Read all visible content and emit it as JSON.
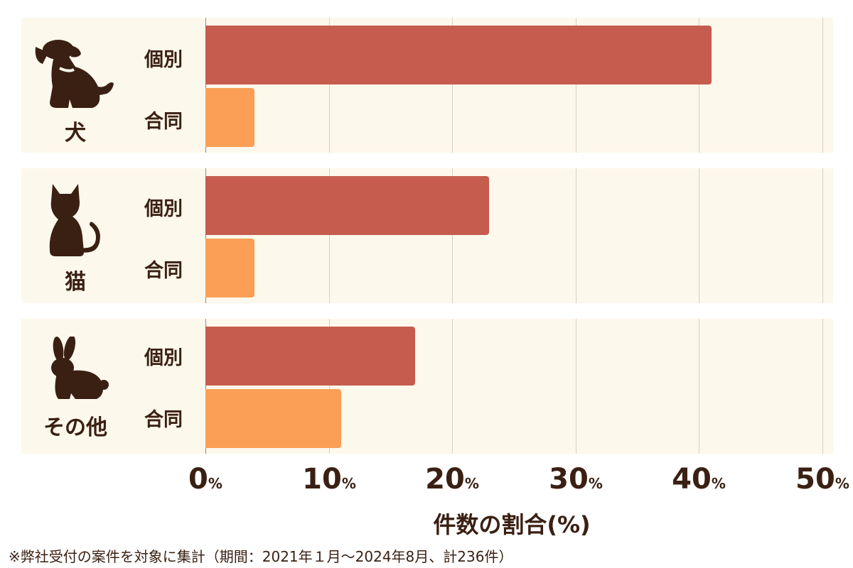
{
  "chart_data": {
    "type": "bar",
    "orientation": "horizontal",
    "groups": [
      {
        "label": "犬",
        "icon": "dog-icon",
        "bars": [
          {
            "label": "個別",
            "value": 41
          },
          {
            "label": "合同",
            "value": 4
          }
        ]
      },
      {
        "label": "猫",
        "icon": "cat-icon",
        "bars": [
          {
            "label": "個別",
            "value": 23
          },
          {
            "label": "合同",
            "value": 4
          }
        ]
      },
      {
        "label": "その他",
        "icon": "rabbit-icon",
        "bars": [
          {
            "label": "個別",
            "value": 17
          },
          {
            "label": "合同",
            "value": 11
          }
        ]
      }
    ],
    "xlim": [
      0,
      50
    ],
    "xticks": [
      0,
      10,
      20,
      30,
      40,
      50
    ],
    "tick_unit": "%",
    "xlabel": "件数の割合(%)",
    "grid": true,
    "colors": {
      "個別": "#c55c4e",
      "合同": "#fa9f55",
      "panel": "#fdf8ec",
      "text": "#3a2013"
    }
  },
  "footnote": "※弊社受付の案件を対象に集計（期間：2021年１月～2024年8月、計236件）"
}
